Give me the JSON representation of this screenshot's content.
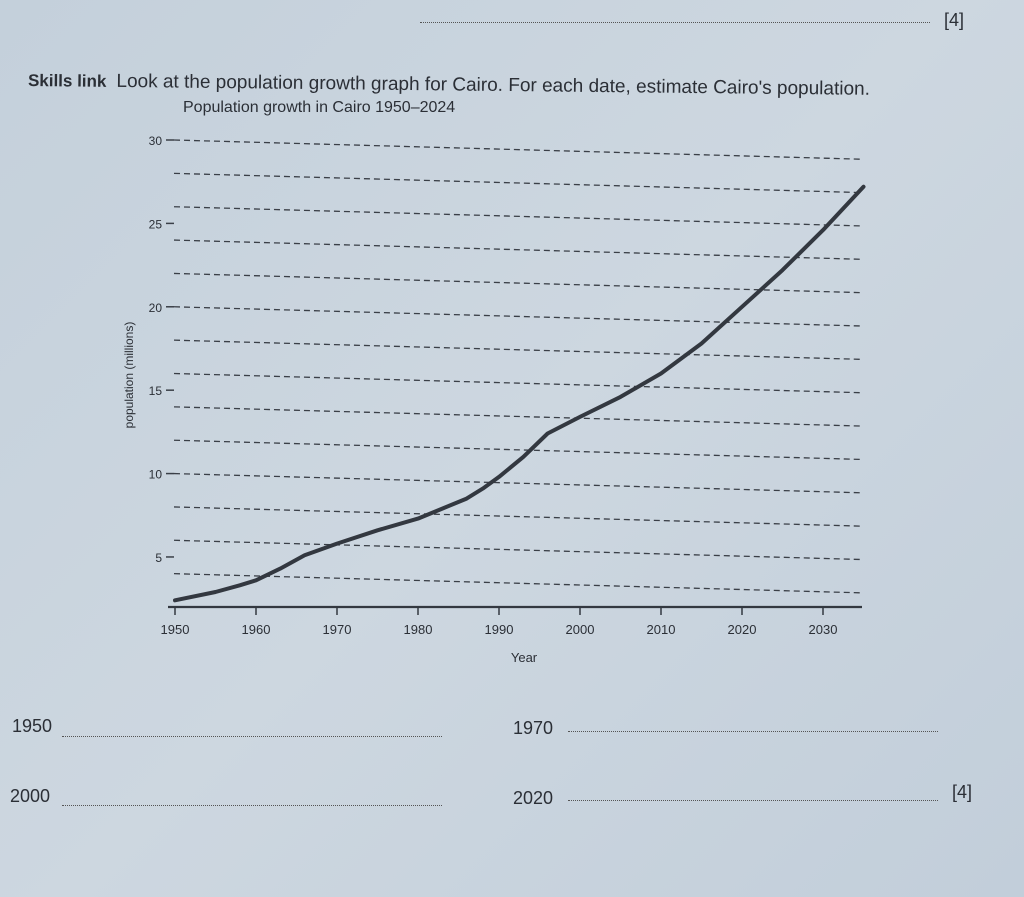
{
  "page": {
    "top_mark": "[4]",
    "skills_label": "Skills link",
    "question": "Look at the population growth graph for Cairo. For each date, estimate Cairo's population.",
    "answers": [
      {
        "year": "1950"
      },
      {
        "year": "1970"
      },
      {
        "year": "2000"
      },
      {
        "year": "2020"
      }
    ],
    "bottom_mark": "[4]"
  },
  "chart_data": {
    "type": "line",
    "title": "Population growth in Cairo 1950–2024",
    "xlabel": "Year",
    "ylabel": "population (millions)",
    "xlim": [
      1950,
      2035
    ],
    "ylim": [
      2,
      30
    ],
    "x_ticks": [
      "1950",
      "1960",
      "1970",
      "1980",
      "1990",
      "2000",
      "2010",
      "2020",
      "2030"
    ],
    "y_ticks": [
      "5",
      "10",
      "15",
      "20",
      "25",
      "30"
    ],
    "gridlines": [
      4,
      6,
      8,
      10,
      12,
      14,
      16,
      18,
      20,
      22,
      24,
      26,
      28,
      30
    ],
    "grid": true,
    "series": [
      {
        "name": "Cairo population",
        "x": [
          1950,
          1955,
          1958,
          1960,
          1963,
          1966,
          1970,
          1975,
          1980,
          1983,
          1986,
          1988,
          1990,
          1993,
          1996,
          2000,
          2005,
          2010,
          2015,
          2020,
          2025,
          2030,
          2035
        ],
        "y": [
          2.4,
          2.9,
          3.3,
          3.6,
          4.3,
          5.1,
          5.8,
          6.6,
          7.3,
          7.9,
          8.5,
          9.1,
          9.8,
          11.0,
          12.4,
          13.4,
          14.6,
          16.0,
          17.8,
          20.0,
          22.2,
          24.6,
          27.2
        ]
      }
    ]
  }
}
